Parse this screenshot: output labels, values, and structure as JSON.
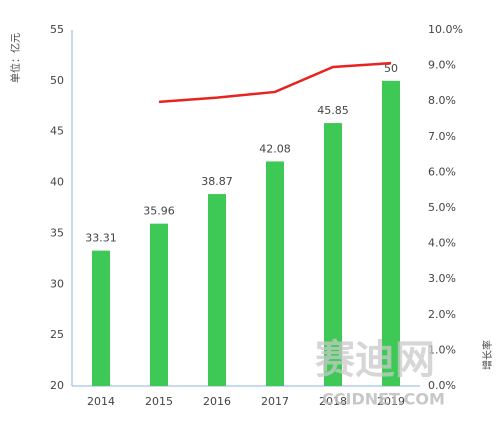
{
  "chart_data": {
    "type": "bar",
    "categories": [
      "2014",
      "2015",
      "2016",
      "2017",
      "2018",
      "2019"
    ],
    "series": [
      {
        "type": "bar",
        "color": "#3ec956",
        "values": [
          33.31,
          35.96,
          38.87,
          42.08,
          45.85,
          50
        ]
      },
      {
        "type": "line",
        "axis": "y2",
        "color": "#e8231f",
        "values": [
          null,
          7.98,
          8.1,
          8.26,
          8.96,
          9.07
        ]
      }
    ],
    "ylabel": "单位：亿元",
    "y2label": "增长率",
    "ylim": [
      20,
      55
    ],
    "yticks": [
      20,
      25,
      30,
      35,
      40,
      45,
      50,
      55
    ],
    "y2lim": [
      0,
      10
    ],
    "y2ticks": [
      {
        "value": 0,
        "label": "0.0%"
      },
      {
        "value": 1,
        "label": "1.0%"
      },
      {
        "value": 2,
        "label": "2.0%"
      },
      {
        "value": 3,
        "label": "3.0%"
      },
      {
        "value": 4,
        "label": "4.0%"
      },
      {
        "value": 5,
        "label": "5.0%"
      },
      {
        "value": 6,
        "label": "6.0%"
      },
      {
        "value": 7,
        "label": "7.0%"
      },
      {
        "value": 8,
        "label": "8.0%"
      },
      {
        "value": 9,
        "label": "9.0%"
      },
      {
        "value": 10,
        "label": "10.0%"
      }
    ],
    "grid": false
  },
  "watermark": {
    "text": "赛迪网",
    "url": "CCIDNET.COM"
  }
}
